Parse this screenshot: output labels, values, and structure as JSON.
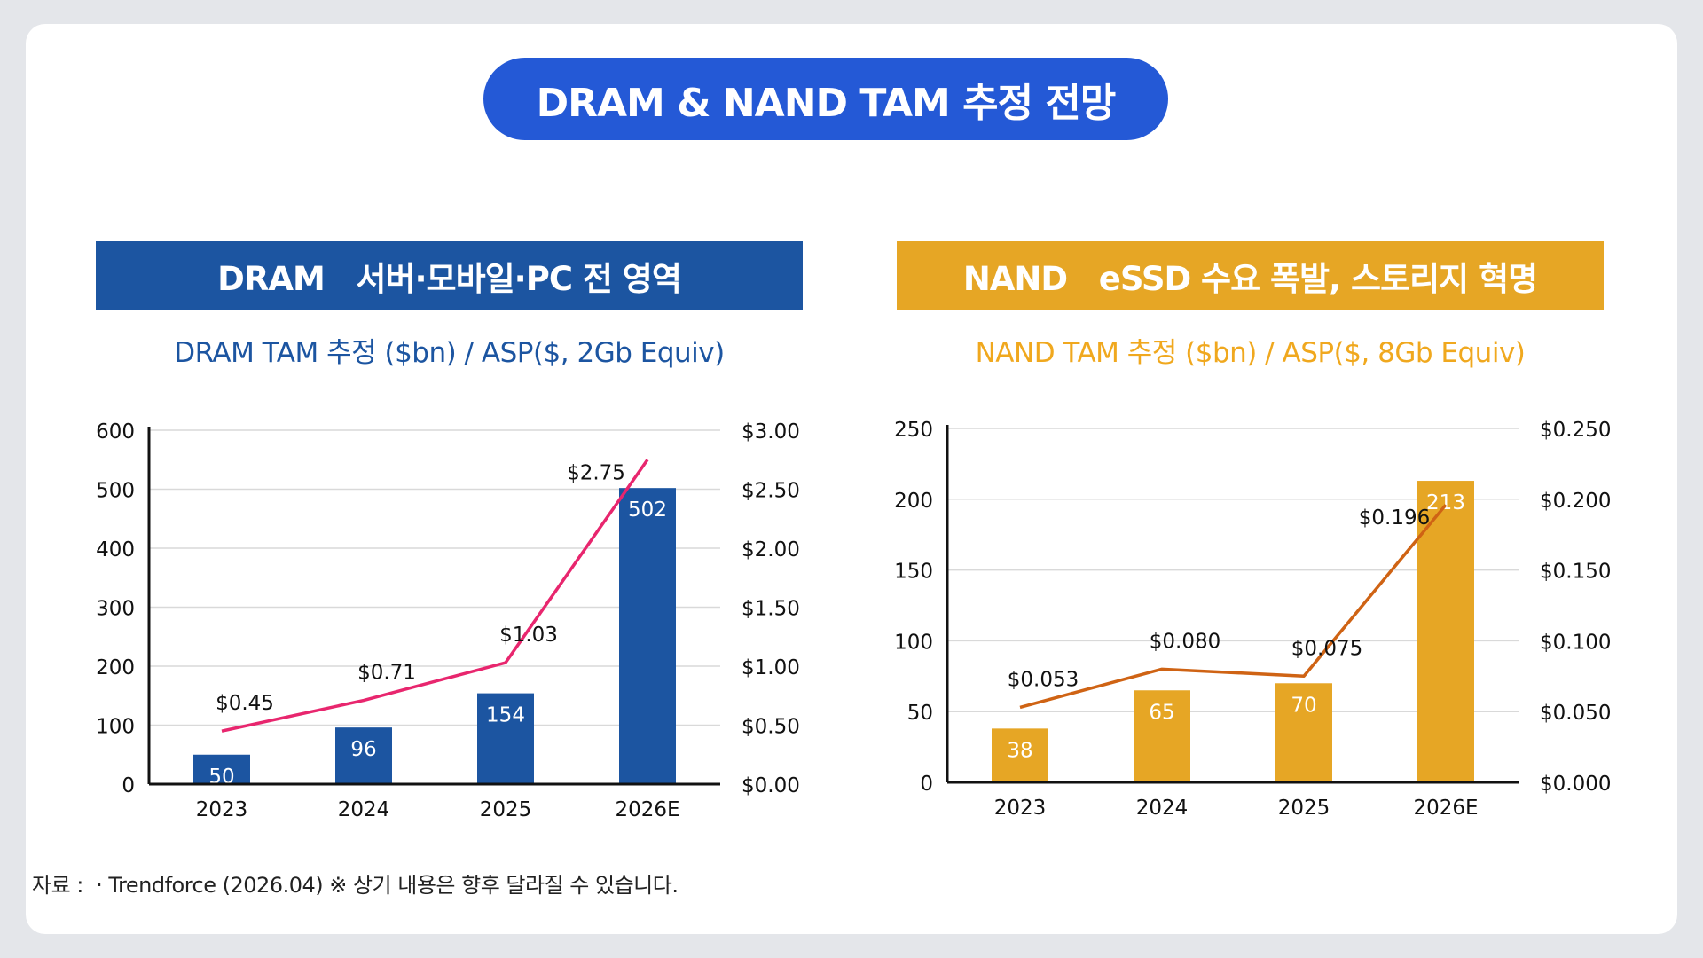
{
  "title": "DRAM & NAND TAM 추정 전망",
  "colors": {
    "pill": "#2459d6",
    "dram": "#1c55a1",
    "dram_line": "#e8266e",
    "nand": "#e6a625",
    "nand_line": "#cf6314",
    "nand_sub": "#f0a81e"
  },
  "panels": {
    "dram": {
      "header": "DRAM   서버·모바일·PC 전 영역",
      "subtitle": "DRAM TAM 추정 ($bn) / ASP($, 2Gb Equiv)"
    },
    "nand": {
      "header": "NAND   eSSD 수요 폭발, 스토리지 혁명",
      "subtitle": "NAND TAM 추정 ($bn) / ASP($, 8Gb Equiv)"
    }
  },
  "chart_data": [
    {
      "type": "bar",
      "categories": [
        "2023",
        "2024",
        "2025",
        "2026E"
      ],
      "series": [
        {
          "type": "bar",
          "axis": "left",
          "values": [
            50,
            96,
            154,
            502
          ],
          "labels": [
            "50",
            "96",
            "154",
            "502"
          ],
          "color": "#1c55a1"
        },
        {
          "type": "line",
          "axis": "right",
          "values": [
            0.45,
            0.71,
            1.03,
            2.75
          ],
          "labels": [
            "$0.45",
            "$0.71",
            "$1.03",
            "$2.75"
          ],
          "color": "#e8266e"
        }
      ],
      "ylim": [
        0,
        600
      ],
      "yticks": [
        "0",
        "100",
        "200",
        "300",
        "400",
        "500",
        "600"
      ],
      "y2lim": [
        0,
        3.0
      ],
      "y2ticks": [
        "$0.00",
        "$0.50",
        "$1.00",
        "$1.50",
        "$2.00",
        "$2.50",
        "$3.00"
      ],
      "grid": true
    },
    {
      "type": "bar",
      "categories": [
        "2023",
        "2024",
        "2025",
        "2026E"
      ],
      "series": [
        {
          "type": "bar",
          "axis": "left",
          "values": [
            38,
            65,
            70,
            213
          ],
          "labels": [
            "38",
            "65",
            "70",
            "213"
          ],
          "color": "#e6a625"
        },
        {
          "type": "line",
          "axis": "right",
          "values": [
            0.053,
            0.08,
            0.075,
            0.196
          ],
          "labels": [
            "$0.053",
            "$0.080",
            "$0.075",
            "$0.196"
          ],
          "color": "#cf6314"
        }
      ],
      "ylim": [
        0,
        250
      ],
      "yticks": [
        "0",
        "50",
        "100",
        "150",
        "200",
        "250"
      ],
      "y2lim": [
        0,
        0.25
      ],
      "y2ticks": [
        "$0.000",
        "$0.050",
        "$0.100",
        "$0.150",
        "$0.200",
        "$0.250"
      ],
      "grid": true
    }
  ],
  "footer": "자료 :  · Trendforce (2026.04) ※ 상기 내용은 향후 달라질 수 있습니다."
}
